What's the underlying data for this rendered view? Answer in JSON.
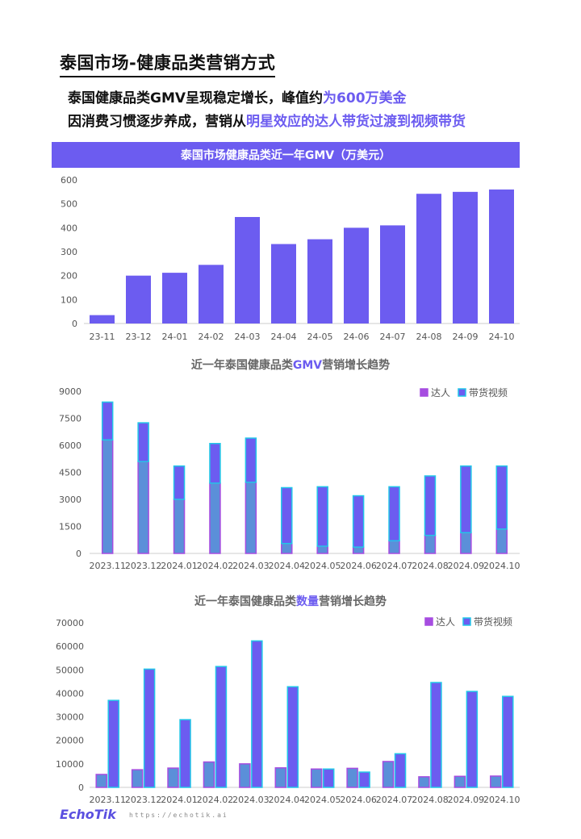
{
  "page": {
    "title": "泰国市场-健康品类营销方式",
    "line1_prefix": "泰国健康品类GMV呈现稳定增长，峰值约",
    "line1_highlight": "为600万美金",
    "line2_prefix": "因消费习惯逐步养成，营销从",
    "line2_highlight": "明星效应的达人带货过渡到视频带货"
  },
  "branding": {
    "logo": "EchoTik",
    "url": "https://echotik.ai"
  },
  "colors": {
    "accent": "#6c5cf0",
    "series_talent_fill": "#5b8fd9",
    "series_talent_border": "#a64de0",
    "series_video_fill": "#6c5cf0",
    "series_video_border": "#22c7e8"
  },
  "chart1": {
    "banner": "泰国市场健康品类近一年GMV（万美元）"
  },
  "chart2": {
    "title_prefix": "近一年泰国健康品类",
    "title_highlight": "GMV",
    "title_suffix": "营销增长趋势"
  },
  "chart3": {
    "title_prefix": "近一年泰国健康品类",
    "title_highlight": "数量",
    "title_suffix": "营销增长趋势"
  },
  "chart_data": [
    {
      "type": "bar",
      "title": "泰国市场健康品类近一年GMV（万美元）",
      "categories": [
        "23-11",
        "23-12",
        "24-01",
        "24-02",
        "24-03",
        "24-04",
        "24-05",
        "24-06",
        "24-07",
        "24-08",
        "24-09",
        "24-10"
      ],
      "values": [
        35,
        200,
        212,
        245,
        445,
        332,
        352,
        400,
        410,
        542,
        550,
        560
      ],
      "yticks": [
        0,
        100,
        200,
        300,
        400,
        500,
        600
      ],
      "ylim": [
        0,
        600
      ],
      "grid": false
    },
    {
      "type": "bar",
      "stacked": true,
      "title": "近一年泰国健康品类GMV营销增长趋势",
      "categories": [
        "2023.11",
        "2023.12",
        "2024.01",
        "2024.02",
        "2024.03",
        "2024.04",
        "2024.05",
        "2024.06",
        "2024.07",
        "2024.08",
        "2024.09",
        "2024.10"
      ],
      "series": [
        {
          "name": "达人",
          "values": [
            6300,
            5100,
            3000,
            3900,
            3950,
            550,
            400,
            350,
            700,
            1000,
            1150,
            1350
          ]
        },
        {
          "name": "带货视频",
          "values": [
            2100,
            2150,
            1850,
            2200,
            2450,
            3100,
            3300,
            2850,
            3000,
            3300,
            3700,
            3500
          ]
        }
      ],
      "yticks": [
        0,
        1500,
        3000,
        4500,
        6000,
        7500,
        9000
      ],
      "ylim": [
        0,
        9000
      ],
      "legend": "top-right",
      "grid": false
    },
    {
      "type": "bar",
      "title": "近一年泰国健康品类数量营销增长趋势",
      "categories": [
        "2023.11",
        "2023.12",
        "2024.01",
        "2024.02",
        "2024.03",
        "2024.04",
        "2024.05",
        "2024.06",
        "2024.07",
        "2024.08",
        "2024.09",
        "2024.10"
      ],
      "series": [
        {
          "name": "达人",
          "values": [
            5500,
            7500,
            8200,
            10800,
            10000,
            8300,
            7800,
            8100,
            11000,
            4500,
            4700,
            4800
          ]
        },
        {
          "name": "带货视频",
          "values": [
            37000,
            50300,
            28800,
            51400,
            62300,
            42800,
            7800,
            6500,
            14300,
            44600,
            40800,
            38700
          ]
        }
      ],
      "yticks": [
        0,
        10000,
        20000,
        30000,
        40000,
        50000,
        60000,
        70000
      ],
      "ylim": [
        0,
        70000
      ],
      "legend": "top-right",
      "grid": false
    }
  ]
}
